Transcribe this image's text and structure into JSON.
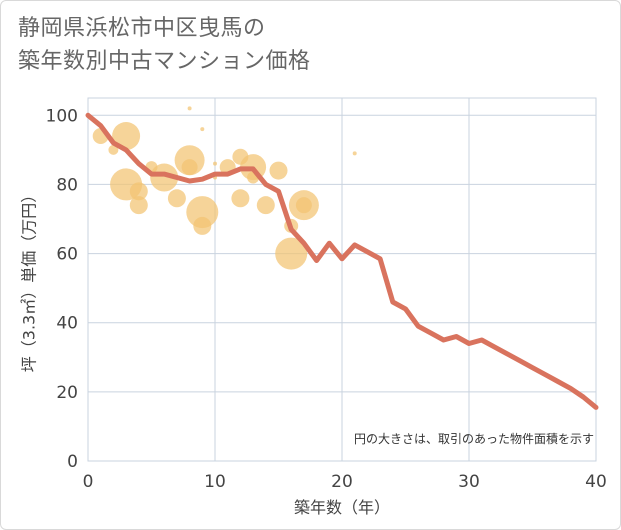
{
  "title_lines": [
    "静岡県浜松市中区曳馬の",
    "築年数別中古マンション価格"
  ],
  "chart_data": {
    "type": "scatter",
    "title": "静岡県浜松市中区曳馬の築年数別中古マンション価格",
    "xlabel": "築年数（年）",
    "ylabel": "坪（3.3㎡）単価（万円）",
    "xlim": [
      0,
      40
    ],
    "ylim": [
      0,
      105
    ],
    "xticks": [
      0,
      10,
      20,
      30,
      40
    ],
    "yticks": [
      0,
      20,
      40,
      60,
      80,
      100
    ],
    "grid": true,
    "note": "円の大きさは、取引のあった物件面積を示す",
    "colors": {
      "bubble": "#f3c472",
      "line": "#d9735e",
      "grid": "#c9d3df"
    },
    "bubbles": [
      {
        "x": 1,
        "y": 94,
        "s": 8
      },
      {
        "x": 2,
        "y": 90,
        "s": 5
      },
      {
        "x": 3,
        "y": 94,
        "s": 14
      },
      {
        "x": 3,
        "y": 80,
        "s": 16
      },
      {
        "x": 4,
        "y": 78,
        "s": 9
      },
      {
        "x": 4,
        "y": 74,
        "s": 9
      },
      {
        "x": 5,
        "y": 85,
        "s": 6
      },
      {
        "x": 6,
        "y": 82,
        "s": 14
      },
      {
        "x": 7,
        "y": 76,
        "s": 9
      },
      {
        "x": 8,
        "y": 87,
        "s": 15
      },
      {
        "x": 8,
        "y": 85,
        "s": 8
      },
      {
        "x": 8,
        "y": 102,
        "s": 2
      },
      {
        "x": 9,
        "y": 96,
        "s": 2
      },
      {
        "x": 9,
        "y": 72,
        "s": 16
      },
      {
        "x": 9,
        "y": 68,
        "s": 9
      },
      {
        "x": 10,
        "y": 86,
        "s": 2
      },
      {
        "x": 10,
        "y": 82,
        "s": 2
      },
      {
        "x": 11,
        "y": 85,
        "s": 8
      },
      {
        "x": 12,
        "y": 88,
        "s": 8
      },
      {
        "x": 12,
        "y": 76,
        "s": 9
      },
      {
        "x": 13,
        "y": 85,
        "s": 13
      },
      {
        "x": 13,
        "y": 82,
        "s": 6
      },
      {
        "x": 14,
        "y": 74,
        "s": 9
      },
      {
        "x": 15,
        "y": 84,
        "s": 9
      },
      {
        "x": 16,
        "y": 68,
        "s": 7
      },
      {
        "x": 16,
        "y": 60,
        "s": 16
      },
      {
        "x": 17,
        "y": 74,
        "s": 15
      },
      {
        "x": 17,
        "y": 74,
        "s": 8
      },
      {
        "x": 21,
        "y": 89,
        "s": 2
      }
    ],
    "series": [
      {
        "x": [
          0,
          1,
          2,
          3,
          4,
          5,
          6,
          7,
          8,
          9,
          10,
          11,
          12,
          13,
          14,
          15,
          16,
          17,
          18,
          19,
          20,
          21,
          22,
          23,
          24,
          25,
          26,
          27,
          28,
          29,
          30,
          31,
          32,
          33,
          34,
          35,
          36,
          37,
          38,
          39,
          40
        ],
        "values": [
          100,
          97,
          92,
          90,
          86,
          83,
          83,
          82,
          81,
          81.5,
          83,
          83,
          84.5,
          84.5,
          80,
          78,
          67,
          63,
          58,
          63,
          58.5,
          62.5,
          60.5,
          58.5,
          46,
          44,
          39,
          37,
          35,
          36,
          34,
          35,
          33,
          31,
          29,
          27,
          25,
          23,
          21,
          18.5,
          15.5
        ]
      }
    ]
  }
}
